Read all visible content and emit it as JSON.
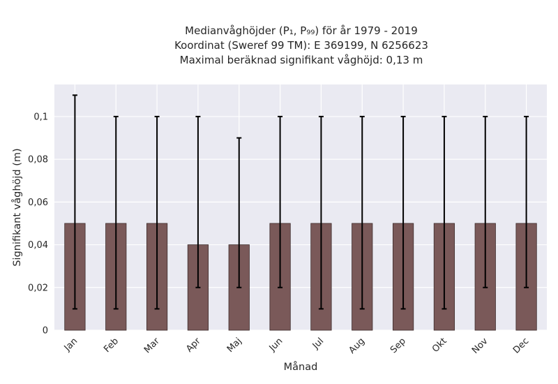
{
  "chart_data": {
    "type": "bar",
    "title_lines": [
      "Medianvåghöjder (P₁, P₉₉) för år 1979 - 2019",
      "Koordinat (Sweref 99 TM): E 369199, N 6256623",
      "Maximal beräknad signifikant våghöjd: 0,13 m"
    ],
    "xlabel": "Månad",
    "ylabel": "Signifikant våghöjd (m)",
    "categories": [
      "Jan",
      "Feb",
      "Mar",
      "Apr",
      "Maj",
      "Jun",
      "Jul",
      "Aug",
      "Sep",
      "Okt",
      "Nov",
      "Dec"
    ],
    "values": [
      0.05,
      0.05,
      0.05,
      0.04,
      0.04,
      0.05,
      0.05,
      0.05,
      0.05,
      0.05,
      0.05,
      0.05
    ],
    "error_low": [
      0.01,
      0.01,
      0.01,
      0.02,
      0.02,
      0.02,
      0.01,
      0.01,
      0.01,
      0.01,
      0.02,
      0.02
    ],
    "error_high": [
      0.11,
      0.1,
      0.1,
      0.1,
      0.09,
      0.1,
      0.1,
      0.1,
      0.1,
      0.1,
      0.1,
      0.1
    ],
    "ylim": [
      0,
      0.115
    ],
    "yticks": [
      0,
      0.02,
      0.04,
      0.06,
      0.08,
      0.1
    ],
    "ytick_labels": [
      "0",
      "0,02",
      "0,04",
      "0,06",
      "0,08",
      "0,1"
    ],
    "grid": true,
    "colors": {
      "bar": "#7a5959",
      "bar_edge": "#3d2c2c",
      "background": "#eaeaf2",
      "grid": "#ffffff",
      "errorbar": "#000000"
    }
  }
}
